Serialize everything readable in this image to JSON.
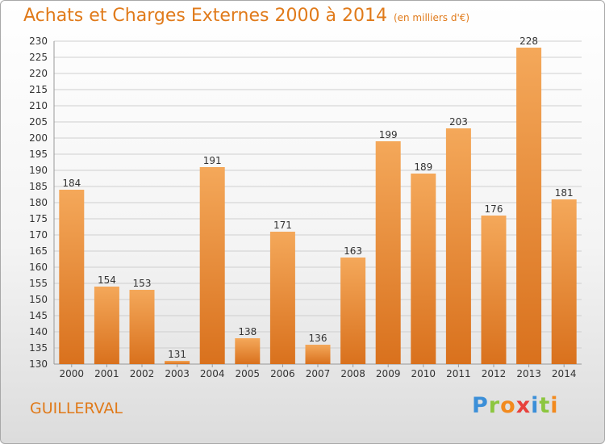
{
  "title": "Achats et Charges Externes 2000 à 2014",
  "unit_note": "(en milliers d'€)",
  "commune": "GUILLERVAL",
  "logo": {
    "text": "Proxiti",
    "letters": [
      {
        "ch": "P",
        "color": "#3b8fd8"
      },
      {
        "ch": "r",
        "color": "#8cc63f"
      },
      {
        "ch": "o",
        "color": "#f28a1e"
      },
      {
        "ch": "x",
        "color": "#e8413c"
      },
      {
        "ch": "i",
        "color": "#3b8fd8"
      },
      {
        "ch": "t",
        "color": "#8cc63f"
      },
      {
        "ch": "i",
        "color": "#f28a1e"
      }
    ]
  },
  "colors": {
    "title": "#e07a1a",
    "bar_light": "#f4a85a",
    "bar_dark": "#d9711d",
    "grid": "#cfcfcf"
  },
  "chart_data": {
    "type": "bar",
    "title": "Achats et Charges Externes 2000 à 2014",
    "subtitle": "(en milliers d'€)",
    "xlabel": "",
    "ylabel": "",
    "categories": [
      "2000",
      "2001",
      "2002",
      "2003",
      "2004",
      "2005",
      "2006",
      "2007",
      "2008",
      "2009",
      "2010",
      "2011",
      "2012",
      "2013",
      "2014"
    ],
    "values": [
      184,
      154,
      153,
      131,
      191,
      138,
      171,
      136,
      163,
      199,
      189,
      203,
      176,
      228,
      181
    ],
    "ylim": [
      130,
      230
    ],
    "ytick_step": 5,
    "grid": true,
    "data_labels": true
  }
}
